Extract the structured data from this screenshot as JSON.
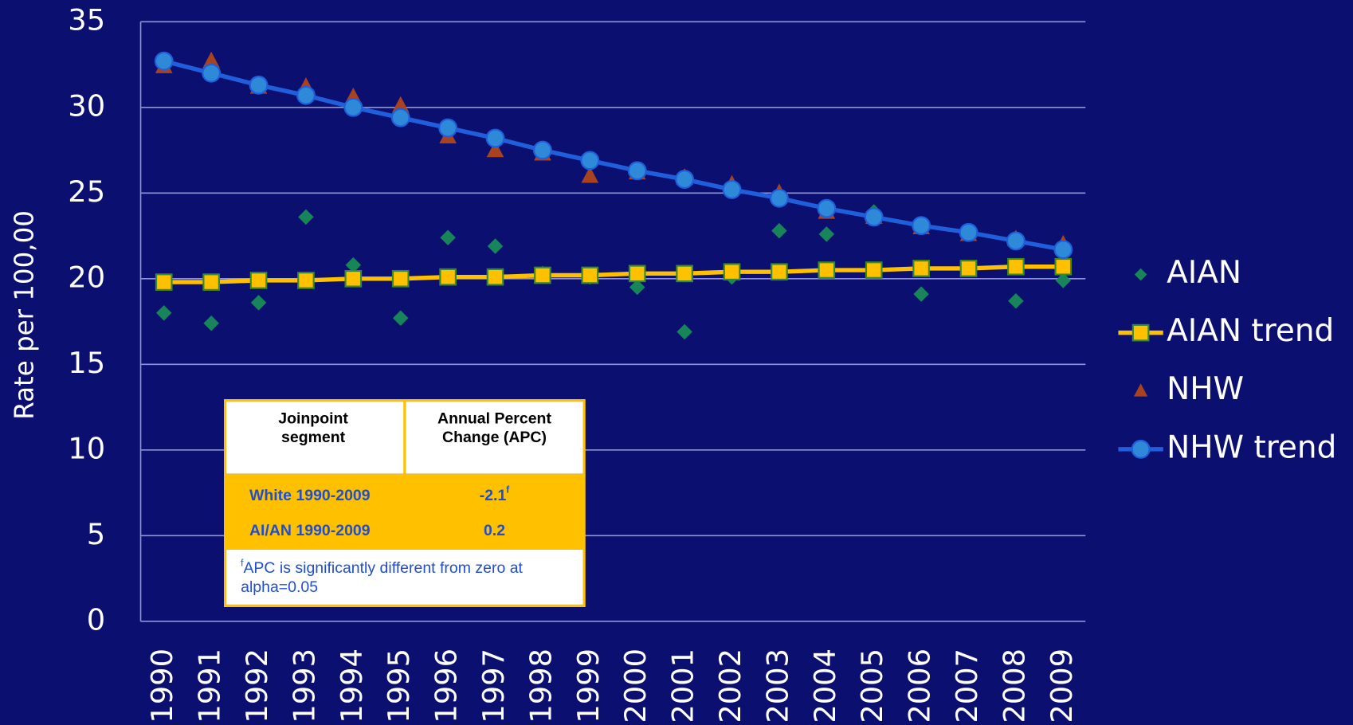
{
  "chart_data": {
    "type": "line",
    "y_label": "Rate per 100,00",
    "categories": [
      "1990",
      "1991",
      "1992",
      "1993",
      "1994",
      "1995",
      "1996",
      "1997",
      "1998",
      "1999",
      "2000",
      "2001",
      "2002",
      "2003",
      "2004",
      "2005",
      "2006",
      "2007",
      "2008",
      "2009"
    ],
    "ylim": [
      0,
      35
    ],
    "yticks": [
      0,
      5,
      10,
      15,
      20,
      25,
      30,
      35
    ],
    "grid": true,
    "legend": "right",
    "series": [
      {
        "name": "AIAN",
        "color": "#17845a",
        "marker": "diamond",
        "line": false,
        "values": [
          18.0,
          17.4,
          18.6,
          23.6,
          20.8,
          17.7,
          22.4,
          21.9,
          20.3,
          20.1,
          19.5,
          16.9,
          20.1,
          22.8,
          22.6,
          23.9,
          19.1,
          20.6,
          18.7,
          19.9
        ]
      },
      {
        "name": "AIAN trend",
        "color": "#ffc000",
        "marker": "square",
        "line": true,
        "values": [
          19.8,
          19.8,
          19.9,
          19.9,
          20.0,
          20.0,
          20.1,
          20.1,
          20.2,
          20.2,
          20.3,
          20.3,
          20.4,
          20.4,
          20.5,
          20.5,
          20.6,
          20.6,
          20.7,
          20.7
        ]
      },
      {
        "name": "NHW",
        "color": "#a9421f",
        "marker": "triangle",
        "line": false,
        "values": [
          32.4,
          32.7,
          31.2,
          31.2,
          30.6,
          30.1,
          28.3,
          27.5,
          27.3,
          26.0,
          26.2,
          25.9,
          25.5,
          25.0,
          23.9,
          23.6,
          23.0,
          22.6,
          22.3,
          22.0
        ]
      },
      {
        "name": "NHW trend",
        "color": "#1f5fdc",
        "marker": "circle",
        "line": true,
        "values": [
          32.7,
          32.0,
          31.3,
          30.7,
          30.0,
          29.4,
          28.8,
          28.2,
          27.5,
          26.9,
          26.3,
          25.8,
          25.2,
          24.7,
          24.1,
          23.6,
          23.1,
          22.7,
          22.2,
          21.7
        ]
      }
    ],
    "table": {
      "headers": [
        "Joinpoint segment",
        "Annual Percent Change (APC)"
      ],
      "rows": [
        [
          {
            "text": "White 1990-2009"
          },
          {
            "text": "-2.1",
            "sup": "f"
          }
        ],
        [
          {
            "text": "AI/AN 1990-2009"
          },
          {
            "text": "0.2"
          }
        ]
      ],
      "footnote": {
        "sup": "f",
        "text": "APC is significantly different from zero at alpha=0.05"
      }
    }
  }
}
